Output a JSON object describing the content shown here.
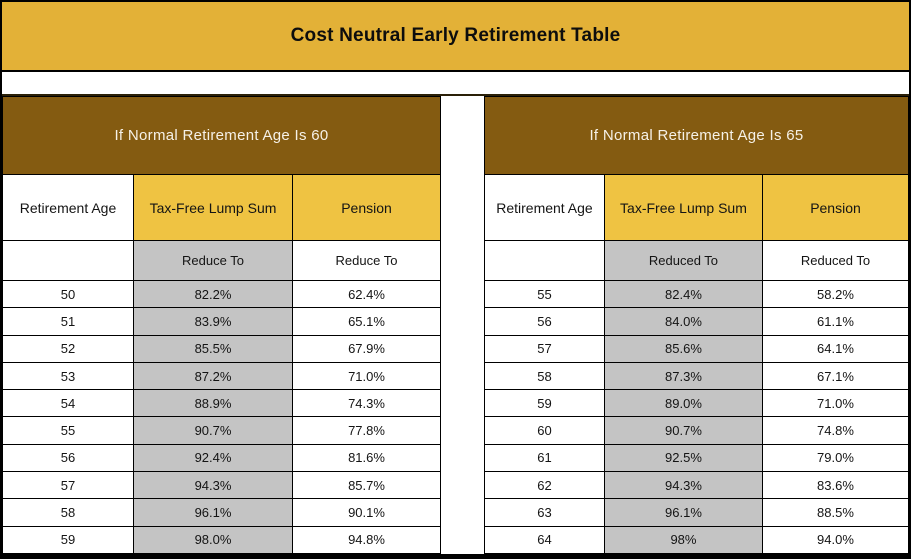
{
  "page": {
    "title": "Cost Neutral Early Retirement Table"
  },
  "colors": {
    "title_bg": "#E3B137",
    "band_bg": "#845B11",
    "band_text": "#F6F1E7",
    "column_header_bg": "#EFC342",
    "subheader_gray_bg": "#C4C4C4",
    "border": "#000000",
    "text": "#141414"
  },
  "chart_data": [
    {
      "type": "table",
      "title": "If Normal Retirement Age Is 60",
      "columns": [
        "Retirement Age",
        "Tax-Free Lump Sum",
        "Pension"
      ],
      "subheaders": [
        "",
        "Reduce To",
        "Reduce To"
      ],
      "rows": [
        [
          "50",
          "82.2%",
          "62.4%"
        ],
        [
          "51",
          "83.9%",
          "65.1%"
        ],
        [
          "52",
          "85.5%",
          "67.9%"
        ],
        [
          "53",
          "87.2%",
          "71.0%"
        ],
        [
          "54",
          "88.9%",
          "74.3%"
        ],
        [
          "55",
          "90.7%",
          "77.8%"
        ],
        [
          "56",
          "92.4%",
          "81.6%"
        ],
        [
          "57",
          "94.3%",
          "85.7%"
        ],
        [
          "58",
          "96.1%",
          "90.1%"
        ],
        [
          "59",
          "98.0%",
          "94.8%"
        ]
      ]
    },
    {
      "type": "table",
      "title": "If Normal Retirement Age Is 65",
      "columns": [
        "Retirement Age",
        "Tax-Free Lump Sum",
        "Pension"
      ],
      "subheaders": [
        "",
        "Reduced To",
        "Reduced To"
      ],
      "rows": [
        [
          "55",
          "82.4%",
          "58.2%"
        ],
        [
          "56",
          "84.0%",
          "61.1%"
        ],
        [
          "57",
          "85.6%",
          "64.1%"
        ],
        [
          "58",
          "87.3%",
          "67.1%"
        ],
        [
          "59",
          "89.0%",
          "71.0%"
        ],
        [
          "60",
          "90.7%",
          "74.8%"
        ],
        [
          "61",
          "92.5%",
          "79.0%"
        ],
        [
          "62",
          "94.3%",
          "83.6%"
        ],
        [
          "63",
          "96.1%",
          "88.5%"
        ],
        [
          "64",
          "98%",
          "94.0%"
        ]
      ]
    }
  ]
}
